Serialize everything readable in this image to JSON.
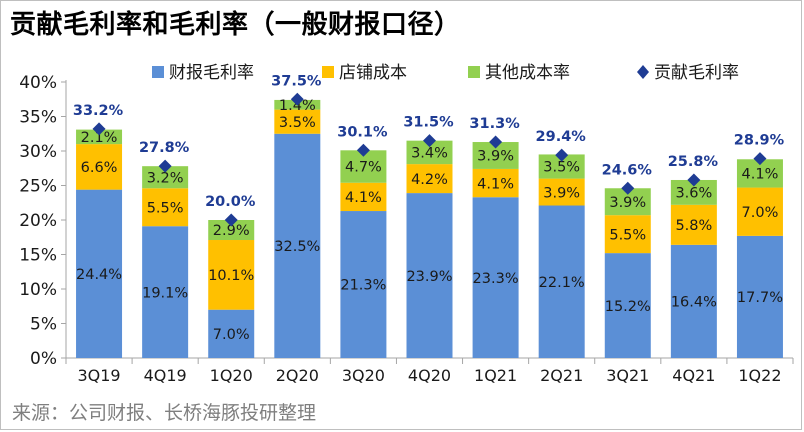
{
  "title": "贡献毛利率和毛利率（一般财报口径）",
  "source": "来源：公司财报、长桥海豚投研整理",
  "colors": {
    "financial": "#5b8fd6",
    "store": "#ffc000",
    "other": "#92d050",
    "marker": "#1f3c94",
    "total_label": "#1f3c94",
    "text": "#1a1a1a",
    "axis": "#a6a6a6"
  },
  "chart_data": {
    "type": "stacked-bar",
    "categories": [
      "3Q19",
      "4Q19",
      "1Q20",
      "2Q20",
      "3Q20",
      "4Q20",
      "1Q21",
      "2Q21",
      "3Q21",
      "4Q21",
      "1Q22"
    ],
    "series": [
      {
        "name": "财报毛利率",
        "key": "financial",
        "values": [
          24.4,
          19.1,
          7.0,
          32.5,
          21.3,
          23.9,
          23.3,
          22.1,
          15.2,
          16.4,
          17.7
        ]
      },
      {
        "name": "店铺成本",
        "key": "store",
        "values": [
          6.6,
          5.5,
          10.1,
          3.5,
          4.1,
          4.2,
          4.1,
          3.9,
          5.5,
          5.8,
          7.0
        ]
      },
      {
        "name": "其他成本率",
        "key": "other",
        "values": [
          2.1,
          3.2,
          2.9,
          1.4,
          4.7,
          3.4,
          3.9,
          3.5,
          3.9,
          3.6,
          4.1
        ]
      }
    ],
    "marker_series": {
      "name": "贡献毛利率",
      "values": [
        33.2,
        27.8,
        20.0,
        37.5,
        30.1,
        31.5,
        31.3,
        29.4,
        24.6,
        25.8,
        28.9
      ]
    },
    "ylim": [
      0,
      40
    ],
    "yticks": [
      "0%",
      "5%",
      "10%",
      "15%",
      "20%",
      "25%",
      "30%",
      "35%",
      "40%"
    ],
    "ytick_values": [
      0,
      5,
      10,
      15,
      20,
      25,
      30,
      35,
      40
    ],
    "legend_position": "top",
    "grid": false
  }
}
